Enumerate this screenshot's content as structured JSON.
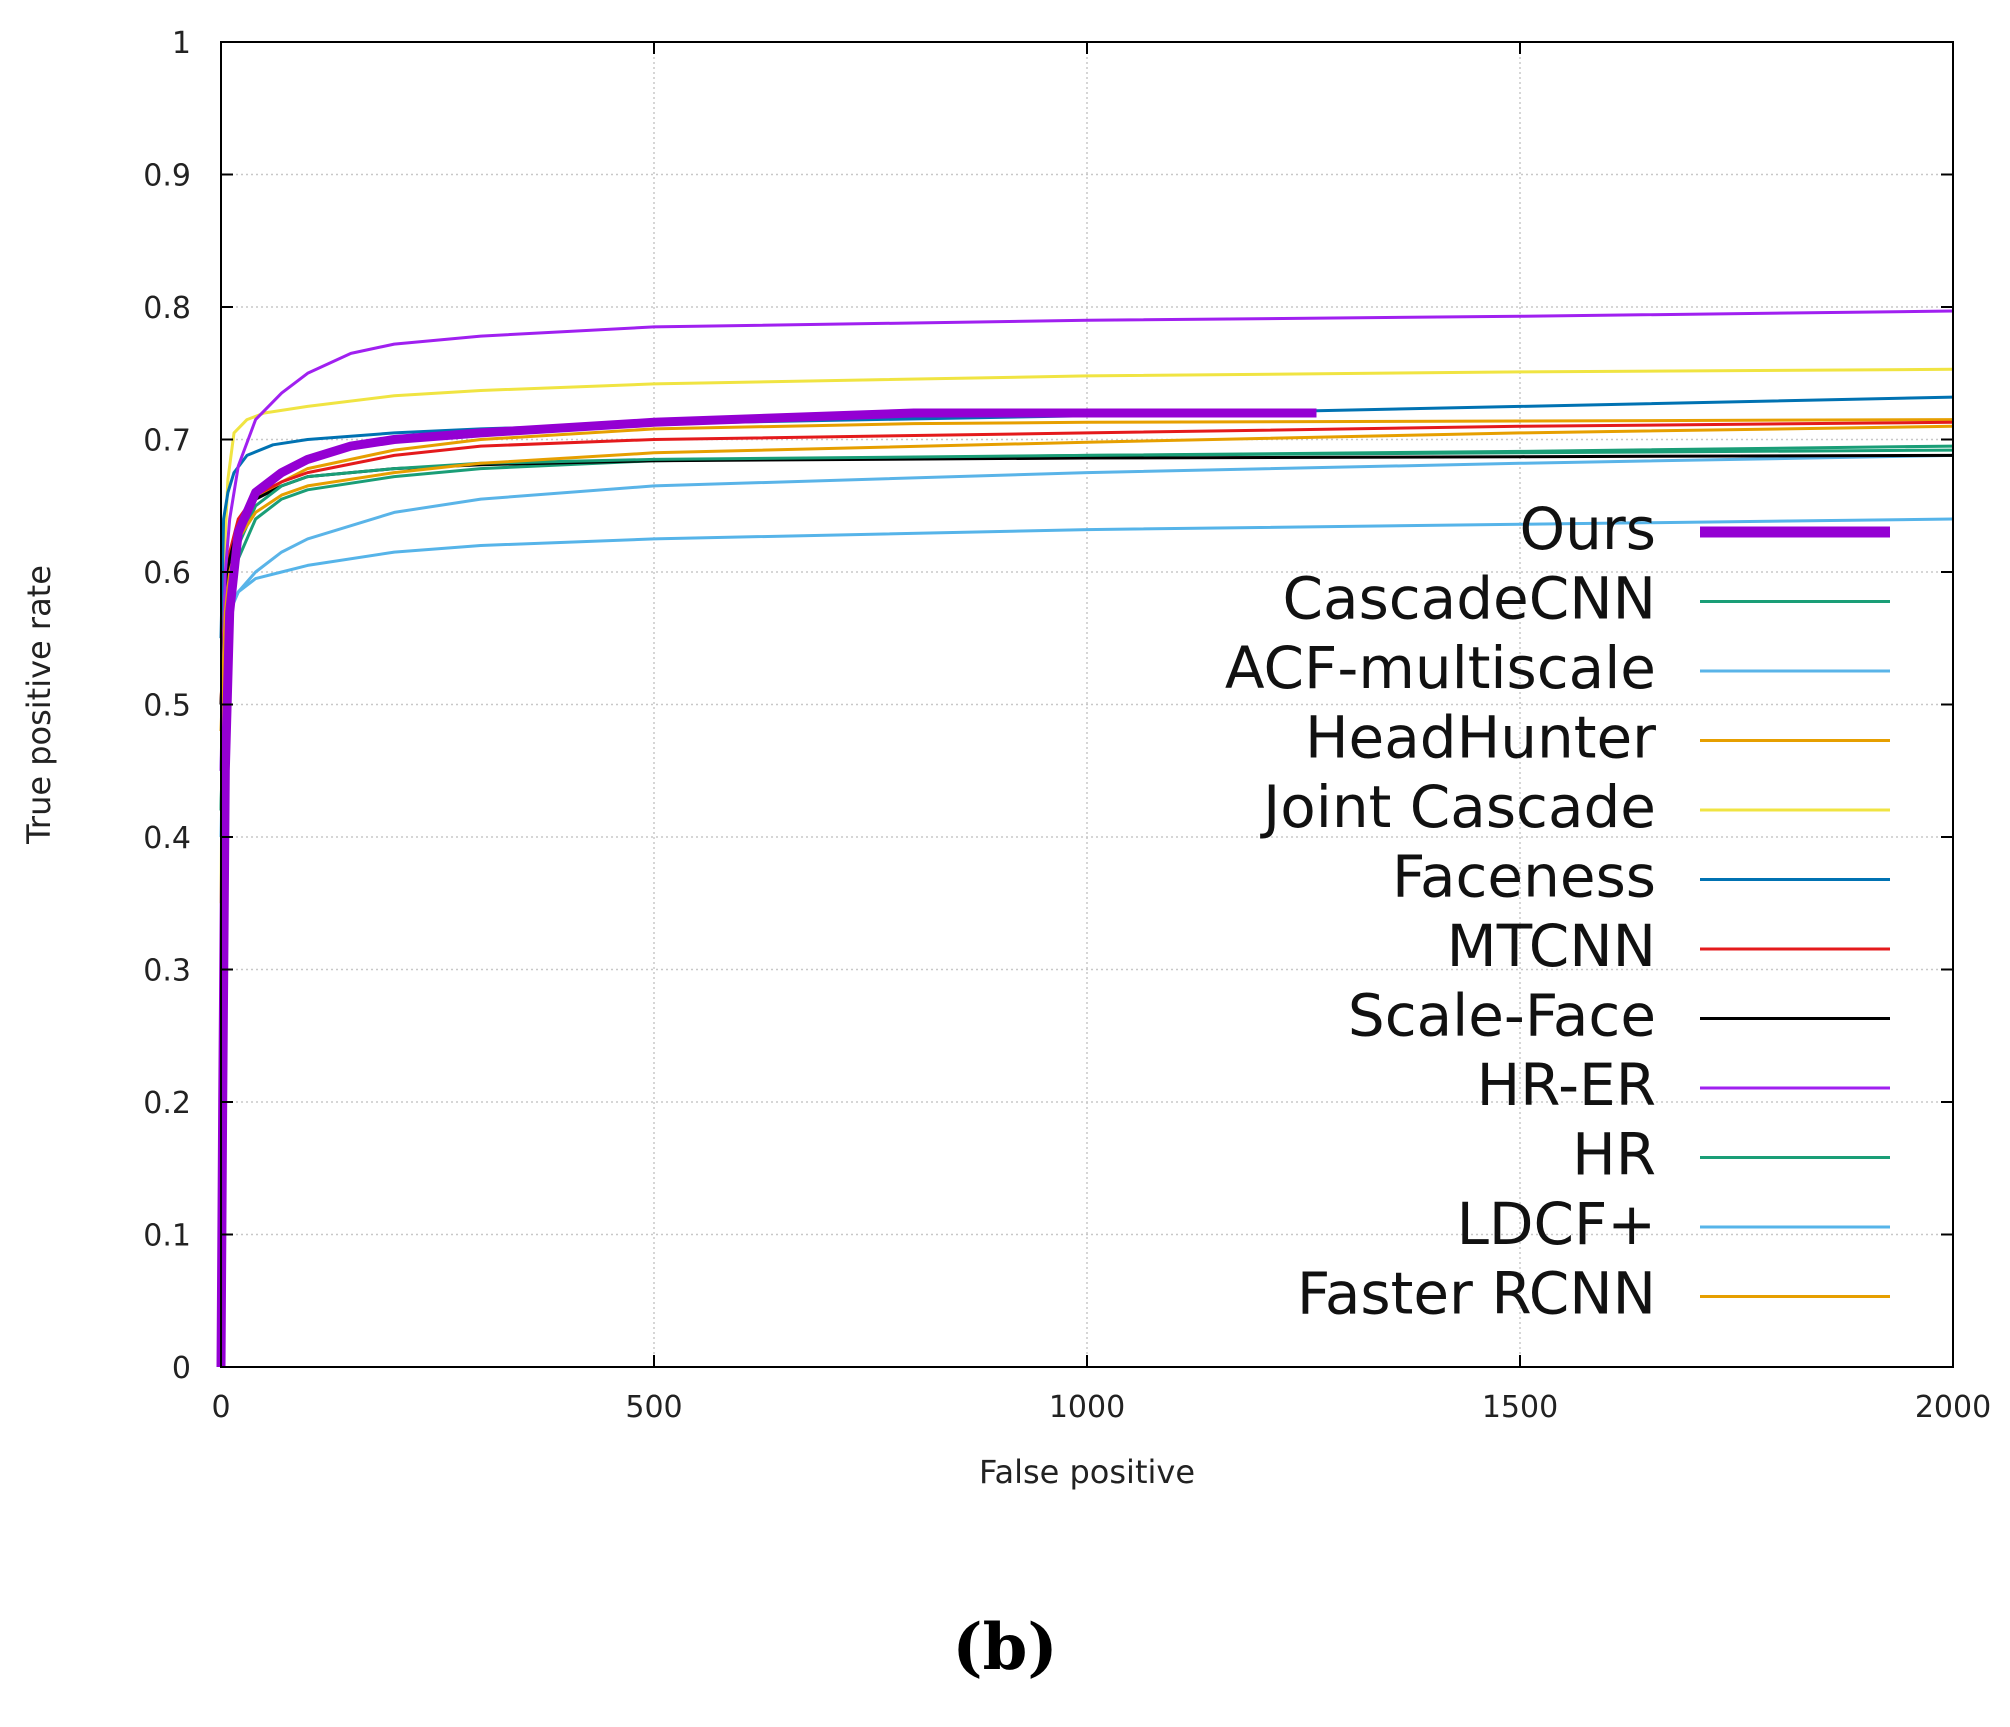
{
  "caption": "(b)",
  "chart_data": {
    "type": "line",
    "title": "",
    "xlabel": "False positive",
    "ylabel": "True positive rate",
    "xlim": [
      0,
      2000
    ],
    "ylim": [
      0,
      1
    ],
    "xticks": [
      "0",
      "500",
      "1000",
      "1500",
      "2000"
    ],
    "xtick_values": [
      0,
      500,
      1000,
      1500,
      2000
    ],
    "yticks": [
      "0",
      "0.1",
      "0.2",
      "0.3",
      "0.4",
      "0.5",
      "0.6",
      "0.7",
      "0.8",
      "0.9",
      "1"
    ],
    "ytick_values": [
      0,
      0.1,
      0.2,
      0.3,
      0.4,
      0.5,
      0.6,
      0.7,
      0.8,
      0.9,
      1.0
    ],
    "grid": true,
    "legend_position": "right",
    "series": [
      {
        "name": "Ours",
        "color": "#9400d3",
        "emphasis": true,
        "x": [
          0,
          2,
          5,
          10,
          20,
          40,
          70,
          100,
          150,
          200,
          300,
          500,
          800,
          1000,
          1265
        ],
        "y": [
          0,
          0.2,
          0.45,
          0.57,
          0.63,
          0.66,
          0.675,
          0.685,
          0.695,
          0.7,
          0.705,
          0.713,
          0.72,
          0.72,
          0.72
        ]
      },
      {
        "name": "CascadeCNN",
        "color": "#1a9e77",
        "x": [
          0,
          5,
          10,
          20,
          40,
          70,
          100,
          200,
          300,
          500,
          1000,
          1500,
          2000
        ],
        "y": [
          0.42,
          0.55,
          0.58,
          0.61,
          0.64,
          0.655,
          0.662,
          0.672,
          0.678,
          0.684,
          0.688,
          0.691,
          0.695
        ]
      },
      {
        "name": "ACF-multiscale",
        "color": "#5ab4e8",
        "x": [
          0,
          5,
          10,
          20,
          40,
          70,
          100,
          200,
          300,
          500,
          1000,
          1500,
          2000
        ],
        "y": [
          0.45,
          0.55,
          0.57,
          0.585,
          0.6,
          0.615,
          0.625,
          0.645,
          0.655,
          0.665,
          0.675,
          0.682,
          0.688
        ]
      },
      {
        "name": "HeadHunter",
        "color": "#e69f00",
        "x": [
          0,
          5,
          10,
          20,
          40,
          70,
          100,
          200,
          300,
          500,
          800,
          1000,
          1500,
          2000
        ],
        "y": [
          0.5,
          0.58,
          0.61,
          0.635,
          0.655,
          0.668,
          0.678,
          0.692,
          0.7,
          0.708,
          0.712,
          0.713,
          0.714,
          0.715
        ]
      },
      {
        "name": "Joint Cascade",
        "color": "#f0e442",
        "x": [
          0,
          3,
          8,
          15,
          30,
          50,
          100,
          200,
          300,
          500,
          1000,
          1500,
          2000
        ],
        "y": [
          0.35,
          0.6,
          0.67,
          0.705,
          0.715,
          0.72,
          0.725,
          0.733,
          0.737,
          0.742,
          0.748,
          0.751,
          0.753
        ]
      },
      {
        "name": "Faceness",
        "color": "#0072b2",
        "x": [
          0,
          3,
          8,
          15,
          30,
          60,
          100,
          200,
          300,
          500,
          1000,
          1500,
          2000
        ],
        "y": [
          0.55,
          0.64,
          0.66,
          0.675,
          0.688,
          0.696,
          0.7,
          0.705,
          0.708,
          0.712,
          0.718,
          0.725,
          0.732
        ]
      },
      {
        "name": "MTCNN",
        "color": "#e41a1c",
        "x": [
          0,
          5,
          10,
          20,
          40,
          70,
          100,
          200,
          300,
          500,
          1000,
          1500,
          2000
        ],
        "y": [
          0.5,
          0.59,
          0.615,
          0.64,
          0.658,
          0.668,
          0.675,
          0.688,
          0.695,
          0.7,
          0.705,
          0.71,
          0.713
        ]
      },
      {
        "name": "Scale-Face",
        "color": "#000000",
        "x": [
          0,
          5,
          10,
          20,
          40,
          70,
          100,
          200,
          300,
          500,
          1000,
          1500,
          2000
        ],
        "y": [
          0.5,
          0.58,
          0.61,
          0.635,
          0.655,
          0.665,
          0.672,
          0.678,
          0.681,
          0.684,
          0.686,
          0.687,
          0.688
        ]
      },
      {
        "name": "HR-ER",
        "color": "#a020f0",
        "x": [
          0,
          5,
          10,
          20,
          40,
          70,
          100,
          150,
          200,
          300,
          500,
          1000,
          1500,
          2000
        ],
        "y": [
          0.45,
          0.6,
          0.64,
          0.68,
          0.715,
          0.735,
          0.75,
          0.765,
          0.772,
          0.778,
          0.785,
          0.79,
          0.793,
          0.797
        ]
      },
      {
        "name": "HR",
        "color": "#1a9e77",
        "x": [
          0,
          5,
          10,
          20,
          40,
          70,
          100,
          200,
          300,
          500,
          1000,
          1500,
          2000
        ],
        "y": [
          0.42,
          0.56,
          0.59,
          0.62,
          0.65,
          0.665,
          0.672,
          0.678,
          0.682,
          0.685,
          0.688,
          0.69,
          0.692
        ]
      },
      {
        "name": "LDCF+",
        "color": "#56b4e9",
        "x": [
          0,
          5,
          10,
          20,
          40,
          70,
          100,
          200,
          300,
          500,
          1000,
          1500,
          2000
        ],
        "y": [
          0.4,
          0.55,
          0.57,
          0.585,
          0.595,
          0.6,
          0.605,
          0.615,
          0.62,
          0.625,
          0.632,
          0.636,
          0.64
        ]
      },
      {
        "name": "Faster RCNN",
        "color": "#e69f00",
        "x": [
          0,
          5,
          10,
          20,
          40,
          70,
          100,
          200,
          300,
          500,
          1000,
          1500,
          2000
        ],
        "y": [
          0.48,
          0.57,
          0.6,
          0.625,
          0.645,
          0.658,
          0.665,
          0.675,
          0.682,
          0.69,
          0.698,
          0.705,
          0.71
        ]
      }
    ]
  }
}
